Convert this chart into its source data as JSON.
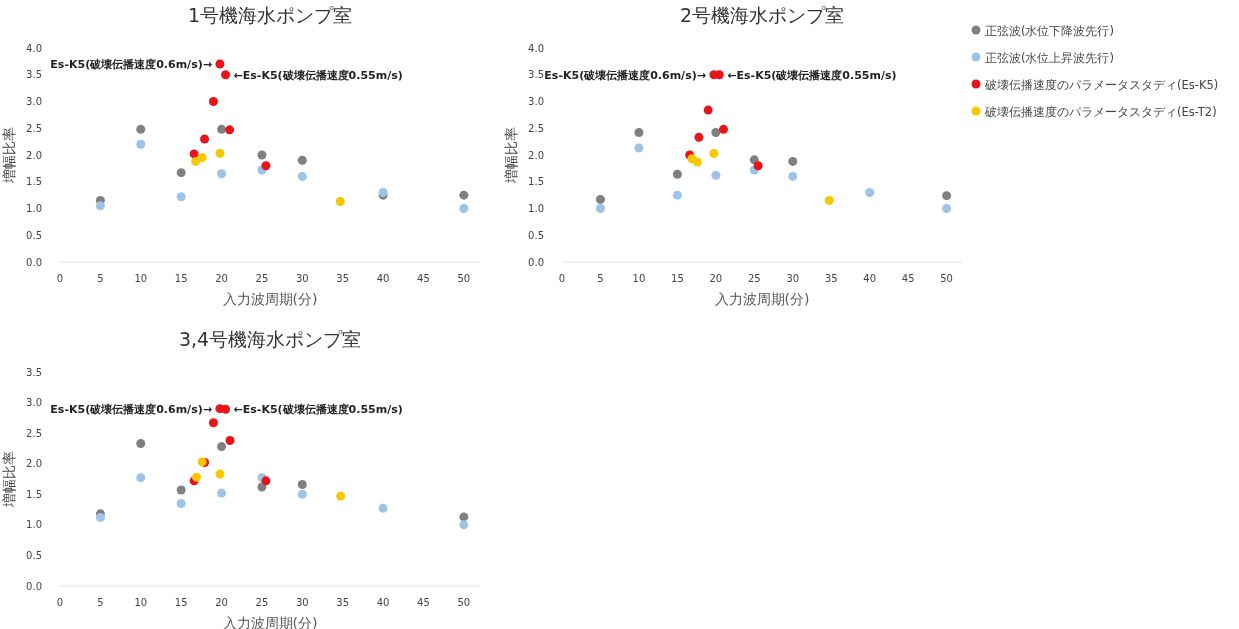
{
  "chart_data": [
    {
      "type": "scatter",
      "title": "1号機海水ポンプ室",
      "xlabel": "入力波周期(分)",
      "ylabel": "増幅比率",
      "xlim": [
        0,
        52
      ],
      "ylim": [
        0,
        4
      ],
      "xticks": [
        0,
        5,
        10,
        15,
        20,
        25,
        30,
        35,
        40,
        45,
        50
      ],
      "yticks": [
        {
          "value": 0,
          "label": "0.0"
        },
        {
          "value": 0.5,
          "label": "0.5"
        },
        {
          "value": 1,
          "label": "1.0"
        },
        {
          "value": 1.5,
          "label": "1.5"
        },
        {
          "value": 2,
          "label": "2.0"
        },
        {
          "value": 2.5,
          "label": "2.5"
        },
        {
          "value": 3,
          "label": "3.0"
        },
        {
          "value": 3.5,
          "label": "3.5"
        },
        {
          "value": 4,
          "label": "4.0"
        }
      ],
      "series": [
        {
          "color": "#808080",
          "x": [
            5,
            10,
            15,
            20,
            25,
            30,
            40,
            50
          ],
          "values": [
            1.15,
            2.48,
            1.67,
            2.48,
            2.0,
            1.9,
            1.25,
            1.25
          ]
        },
        {
          "color": "#9dc3e6",
          "x": [
            5,
            10,
            15,
            20,
            25,
            30,
            40,
            50
          ],
          "values": [
            1.05,
            2.2,
            1.22,
            1.65,
            1.72,
            1.6,
            1.3,
            1.0
          ]
        },
        {
          "color": "#e8141c",
          "x": [
            16.6,
            17.9,
            19,
            19.8,
            20.5,
            21,
            25.5
          ],
          "values": [
            2.02,
            2.3,
            3.0,
            3.7,
            3.5,
            2.47,
            1.8
          ]
        },
        {
          "color": "#f5c800",
          "x": [
            16.8,
            17.6,
            19.8,
            34.7
          ],
          "values": [
            1.88,
            1.95,
            2.03,
            1.13
          ]
        }
      ],
      "annotations": [
        {
          "text": "Es-K5(破壊伝播速度0.6m/s)→",
          "x": 19.8,
          "y": 3.7
        },
        {
          "text": "←Es-K5(破壊伝播速度0.55m/s)",
          "x": 20.5,
          "y": 3.5
        }
      ]
    },
    {
      "type": "scatter",
      "title": "2号機海水ポンプ室",
      "xlabel": "入力波周期(分)",
      "ylabel": "増幅比率",
      "xlim": [
        0,
        52
      ],
      "ylim": [
        0,
        4
      ],
      "legend": "right",
      "xticks": [
        0,
        5,
        10,
        15,
        20,
        25,
        30,
        35,
        40,
        45,
        50
      ],
      "yticks": [
        {
          "value": 0,
          "label": "0.0"
        },
        {
          "value": 0.5,
          "label": "0.5"
        },
        {
          "value": 1,
          "label": "1.0"
        },
        {
          "value": 1.5,
          "label": "1.5"
        },
        {
          "value": 2,
          "label": "2.0"
        },
        {
          "value": 2.5,
          "label": "2.5"
        },
        {
          "value": 3,
          "label": "3.0"
        },
        {
          "value": 3.5,
          "label": "3.5"
        },
        {
          "value": 4,
          "label": "4.0"
        }
      ],
      "series": [
        {
          "name": "正弦波(水位下降波先行)",
          "color": "#808080",
          "x": [
            5,
            10,
            15,
            20,
            25,
            30,
            50
          ],
          "values": [
            1.17,
            2.42,
            1.64,
            2.42,
            1.91,
            1.88,
            1.24
          ]
        },
        {
          "name": "正弦波(水位上昇波先行)",
          "color": "#9dc3e6",
          "x": [
            5,
            10,
            15,
            20,
            25,
            30,
            40,
            50
          ],
          "values": [
            1.0,
            2.13,
            1.25,
            1.62,
            1.72,
            1.6,
            1.3,
            1.0
          ]
        },
        {
          "name": "破壊伝播速度のパラメータスタディ(Es-K5)",
          "color": "#e8141c",
          "x": [
            16.6,
            17.8,
            19,
            19.75,
            20.45,
            21,
            25.5
          ],
          "values": [
            2.0,
            2.33,
            2.84,
            3.5,
            3.5,
            2.48,
            1.8
          ]
        },
        {
          "name": "破壊伝播速度のパラメータスタディ(Es-T2)",
          "color": "#f5c800",
          "x": [
            16.9,
            17.6,
            19.75,
            34.75
          ],
          "values": [
            1.93,
            1.87,
            2.03,
            1.15
          ]
        }
      ],
      "annotations": [
        {
          "text": "Es-K5(破壊伝播速度0.6m/s)→",
          "x": 19.75,
          "y": 3.5
        },
        {
          "text": "←Es-K5(破壊伝播速度0.55m/s)",
          "x": 20.45,
          "y": 3.5
        }
      ]
    },
    {
      "type": "scatter",
      "title": "3,4号機海水ポンプ室",
      "xlabel": "入力波周期(分)",
      "ylabel": "増幅比率",
      "xlim": [
        0,
        52
      ],
      "ylim": [
        0,
        3.5
      ],
      "xticks": [
        0,
        5,
        10,
        15,
        20,
        25,
        30,
        35,
        40,
        45,
        50
      ],
      "yticks": [
        {
          "value": 0,
          "label": "0.0"
        },
        {
          "value": 0.5,
          "label": "0.5"
        },
        {
          "value": 1,
          "label": "1.0"
        },
        {
          "value": 1.5,
          "label": "1.5"
        },
        {
          "value": 2,
          "label": "2.0"
        },
        {
          "value": 2.5,
          "label": "2.5"
        },
        {
          "value": 3,
          "label": "3.0"
        },
        {
          "value": 3.5,
          "label": "3.5"
        }
      ],
      "series": [
        {
          "color": "#808080",
          "x": [
            5,
            10,
            15,
            20,
            25,
            30,
            50
          ],
          "values": [
            1.18,
            2.33,
            1.57,
            2.28,
            1.62,
            1.66,
            1.13
          ]
        },
        {
          "color": "#9dc3e6",
          "x": [
            5,
            10,
            15,
            20,
            25,
            30,
            40,
            50
          ],
          "values": [
            1.12,
            1.77,
            1.35,
            1.52,
            1.77,
            1.5,
            1.27,
            1.0
          ]
        },
        {
          "color": "#e8141c",
          "x": [
            16.6,
            17.9,
            19,
            19.8,
            20.5,
            21.05,
            25.5
          ],
          "values": [
            1.72,
            2.02,
            2.67,
            2.9,
            2.89,
            2.38,
            1.72
          ]
        },
        {
          "color": "#f5c800",
          "x": [
            16.9,
            17.6,
            19.8,
            34.75
          ],
          "values": [
            1.78,
            2.03,
            1.83,
            1.47
          ]
        }
      ],
      "annotations": [
        {
          "text": "Es-K5(破壊伝播速度0.6m/s)→",
          "x": 19.8,
          "y": 2.9
        },
        {
          "text": "←Es-K5(破壊伝播速度0.55m/s)",
          "x": 20.5,
          "y": 2.89
        }
      ]
    }
  ]
}
